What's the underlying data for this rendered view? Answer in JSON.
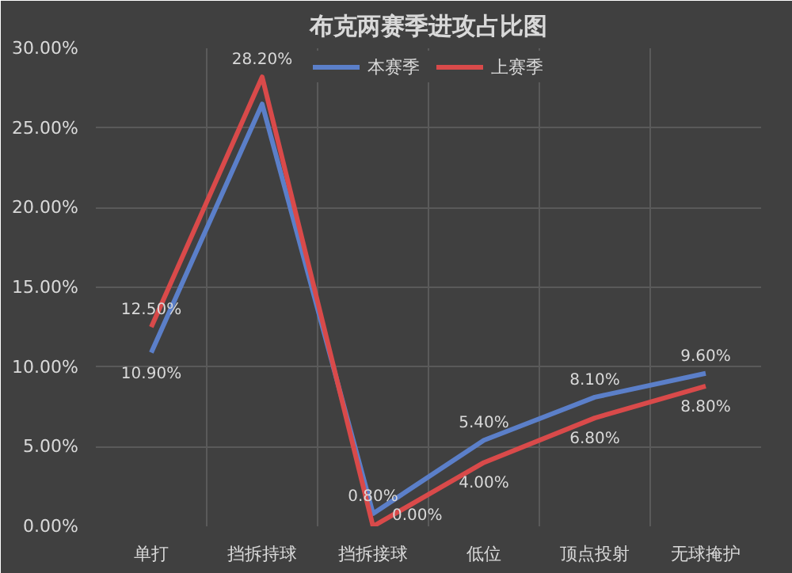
{
  "chart_data": {
    "type": "line",
    "title": "布克两赛季进攻占比图",
    "categories": [
      "单打",
      "挡拆持球",
      "挡拆接球",
      "低位",
      "顶点投射",
      "无球掩护"
    ],
    "series": [
      {
        "name": "本赛季",
        "color": "#5b7fc9",
        "values": [
          10.9,
          26.5,
          0.8,
          5.4,
          8.1,
          9.6
        ],
        "value_labels": [
          "10.90%",
          null,
          "0.80%",
          "5.40%",
          "8.10%",
          "9.60%"
        ]
      },
      {
        "name": "上赛季",
        "color": "#d94a4a",
        "values": [
          12.5,
          28.2,
          0.0,
          4.0,
          6.8,
          8.8
        ],
        "value_labels": [
          "12.50%",
          "28.20%",
          "0.00%",
          "4.00%",
          "6.80%",
          "8.80%"
        ]
      }
    ],
    "ylim": [
      0,
      30
    ],
    "yticks": [
      {
        "value": 0,
        "label": "0.00%"
      },
      {
        "value": 5,
        "label": "5.00%"
      },
      {
        "value": 10,
        "label": "10.00%"
      },
      {
        "value": 15,
        "label": "15.00%"
      },
      {
        "value": 20,
        "label": "20.00%"
      },
      {
        "value": 25,
        "label": "25.00%"
      },
      {
        "value": 30,
        "label": "30.00%"
      }
    ],
    "grid": true,
    "legend": "top",
    "marker": "none",
    "line_style": "solid"
  }
}
